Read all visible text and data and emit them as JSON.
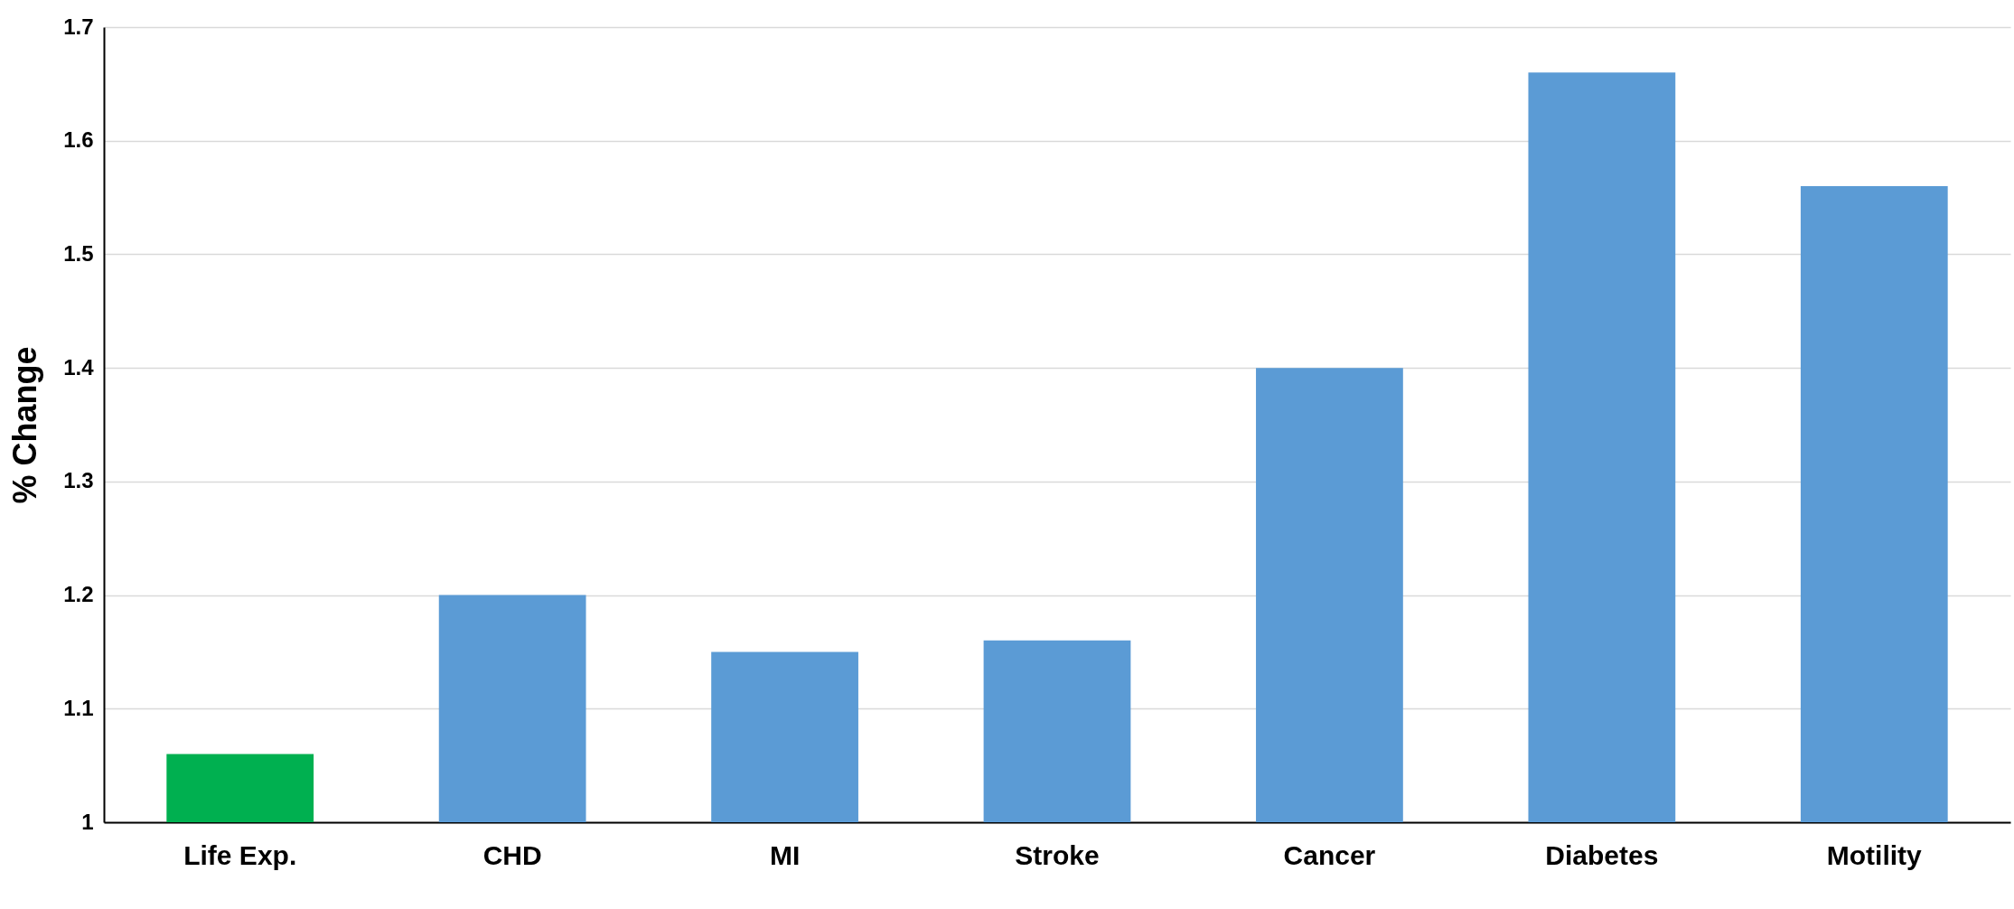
{
  "chart_data": {
    "type": "bar",
    "ylabel": "% Change",
    "categories": [
      "Life Exp.",
      "CHD",
      "MI",
      "Stroke",
      "Cancer",
      "Diabetes",
      "Motility"
    ],
    "values": [
      1.06,
      1.2,
      1.15,
      1.16,
      1.4,
      1.66,
      1.56
    ],
    "colors": [
      "#00b050",
      "#5b9bd5",
      "#5b9bd5",
      "#5b9bd5",
      "#5b9bd5",
      "#5b9bd5",
      "#5b9bd5"
    ],
    "ylim": [
      1,
      1.7
    ],
    "yticks": [
      {
        "value": 1,
        "label": "1"
      },
      1.1,
      1.2,
      1.3,
      1.4,
      1.5,
      1.6,
      1.7
    ],
    "grid": "y"
  }
}
